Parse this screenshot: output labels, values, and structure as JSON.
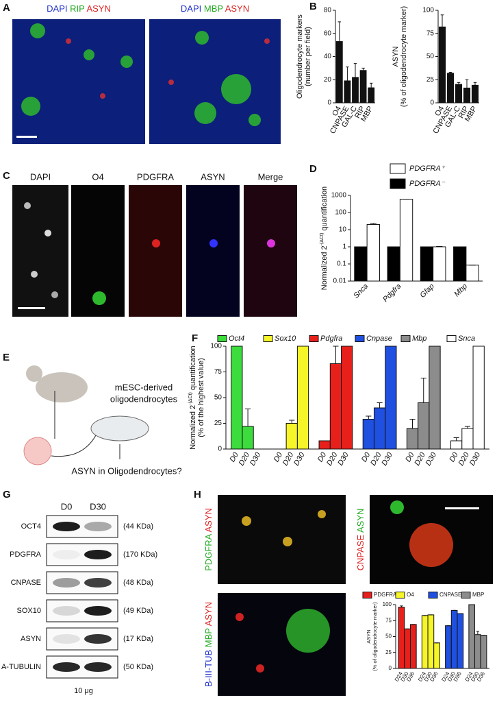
{
  "panels": {
    "letters": [
      "A",
      "B",
      "C",
      "D",
      "E",
      "F",
      "G",
      "H"
    ],
    "a": {
      "left": [
        "DAPI",
        "RIP",
        "ASYN"
      ],
      "right": [
        "DAPI",
        "MBP",
        "ASYN"
      ]
    },
    "c": {
      "labels": [
        "DAPI",
        "O4",
        "PDGFRA",
        "ASYN",
        "Merge"
      ]
    },
    "e": {
      "dish": [
        "mESC-derived",
        "oligodendrocytes"
      ],
      "question": "ASYN in Oligodendrocytes?"
    },
    "g": {
      "columns": [
        "D0",
        "D30"
      ],
      "rows": [
        {
          "protein": "OCT4",
          "size": "(44 KDa)"
        },
        {
          "protein": "PDGFRA",
          "size": "(170 KDa)"
        },
        {
          "protein": "CNPASE",
          "size": "(48 KDa)"
        },
        {
          "protein": "SOX10",
          "size": "(49 KDa)"
        },
        {
          "protein": "ASYN",
          "size": "(17 KDa)"
        },
        {
          "protein": "A-TUBULIN",
          "size": "(50 KDa)"
        }
      ],
      "footer": "10 μg"
    },
    "h": {
      "images": [
        [
          "PDGFRA",
          "ASYN"
        ],
        [
          "CNPASE",
          "ASYN"
        ],
        [
          "B-III-TUB",
          "MBP",
          "ASYN"
        ]
      ]
    }
  },
  "chart_data": [
    {
      "type": "bar",
      "ylabel": [
        "Oligodendrocyte markers",
        "(number per field)"
      ],
      "categories": [
        "O4",
        "CNPASE",
        "GAL-C",
        "RIP",
        "MBP"
      ],
      "series": [
        {
          "color": "#111111",
          "values": [
            53,
            19,
            22,
            28,
            13
          ],
          "errors": [
            17,
            12,
            12,
            2,
            4
          ]
        }
      ],
      "ylim": [
        0,
        80
      ],
      "yticks": [
        0,
        20,
        40,
        60,
        80
      ]
    },
    {
      "type": "bar",
      "ylabel": [
        "ASYN",
        "(% of oligodendrocyte marker)"
      ],
      "categories": [
        "O4",
        "CNPASE",
        "GAL-C",
        "RIP",
        "MBP"
      ],
      "series": [
        {
          "color": "#111111",
          "values": [
            82,
            32,
            20,
            16,
            19
          ],
          "errors": [
            13,
            1,
            2,
            9,
            3
          ]
        }
      ],
      "ylim": [
        0,
        100
      ],
      "yticks": [
        0,
        25,
        50,
        75,
        100
      ]
    },
    {
      "type": "bar",
      "ylabel": [
        [
          "Normalized 2",
          "-(ΔCt)",
          " quantification"
        ]
      ],
      "categories": [
        "Snca",
        "Pdgfra",
        "Gfap",
        "Mbp"
      ],
      "log_scale": true,
      "series": [
        {
          "name": "PDGFRA⁻",
          "color": "#000000",
          "values": [
            1,
            1,
            1,
            1
          ],
          "errors": [
            0,
            0,
            0,
            0
          ]
        },
        {
          "name": "PDGFRA⁺",
          "color": "#ffffff",
          "values": [
            20,
            600,
            1,
            0.085
          ],
          "errors": [
            3,
            0,
            0.05,
            0
          ]
        }
      ],
      "ylim": [
        0.01,
        1000
      ],
      "yticks": [
        0.01,
        0.1,
        1,
        10,
        100,
        1000
      ],
      "legend": "upper right"
    },
    {
      "type": "bar",
      "group_by": "series",
      "ylabel": [
        [
          "Normalized 2",
          "-(ΔCt)",
          " quantification"
        ],
        "(% of the highest value)"
      ],
      "categories": [
        "D0",
        "D20",
        "D30"
      ],
      "series": [
        {
          "name": "Oct4",
          "color": "#3ddc3d",
          "values": [
            100,
            22,
            0
          ],
          "errors": [
            0,
            17,
            0
          ]
        },
        {
          "name": "Sox10",
          "color": "#f5f52a",
          "values": [
            0,
            25,
            100
          ],
          "errors": [
            0,
            3,
            0
          ]
        },
        {
          "name": "Pdgfra",
          "color": "#e8201c",
          "values": [
            8,
            83,
            100
          ],
          "errors": [
            0,
            17,
            0
          ]
        },
        {
          "name": "Cnpase",
          "color": "#1f50e0",
          "values": [
            29,
            40,
            100
          ],
          "errors": [
            3,
            5,
            0
          ]
        },
        {
          "name": "Mbp",
          "color": "#8c8c8c",
          "values": [
            20,
            45,
            100
          ],
          "errors": [
            9,
            24,
            0
          ]
        },
        {
          "name": "Snca",
          "color": "#ffffff",
          "values": [
            8,
            20,
            100
          ],
          "errors": [
            3,
            2,
            0
          ]
        }
      ],
      "ylim": [
        0,
        100
      ],
      "yticks": [
        0,
        25,
        50,
        75,
        100
      ],
      "legend": "top"
    },
    {
      "type": "bar",
      "group_by": "series",
      "ylabel": [
        "ASYN",
        "(% of oligodendrocyte marker)"
      ],
      "categories": [
        "D24",
        "D30",
        "D36"
      ],
      "series": [
        {
          "name": "PDGFRA",
          "color": "#e8201c",
          "values": [
            96,
            62,
            69
          ],
          "errors": [
            2,
            0,
            0
          ]
        },
        {
          "name": "O4",
          "color": "#f5f52a",
          "values": [
            83,
            84,
            40
          ],
          "errors": [
            0,
            0,
            0
          ]
        },
        {
          "name": "CNPASE",
          "color": "#1f50e0",
          "values": [
            67,
            91,
            86
          ],
          "errors": [
            0,
            0,
            0
          ]
        },
        {
          "name": "MBP",
          "color": "#8c8c8c",
          "values": [
            100,
            53,
            52
          ],
          "errors": [
            0,
            5,
            0
          ]
        }
      ],
      "ylim": [
        0,
        100
      ],
      "yticks": [
        0,
        25,
        50,
        75,
        100
      ],
      "legend": "top"
    }
  ]
}
